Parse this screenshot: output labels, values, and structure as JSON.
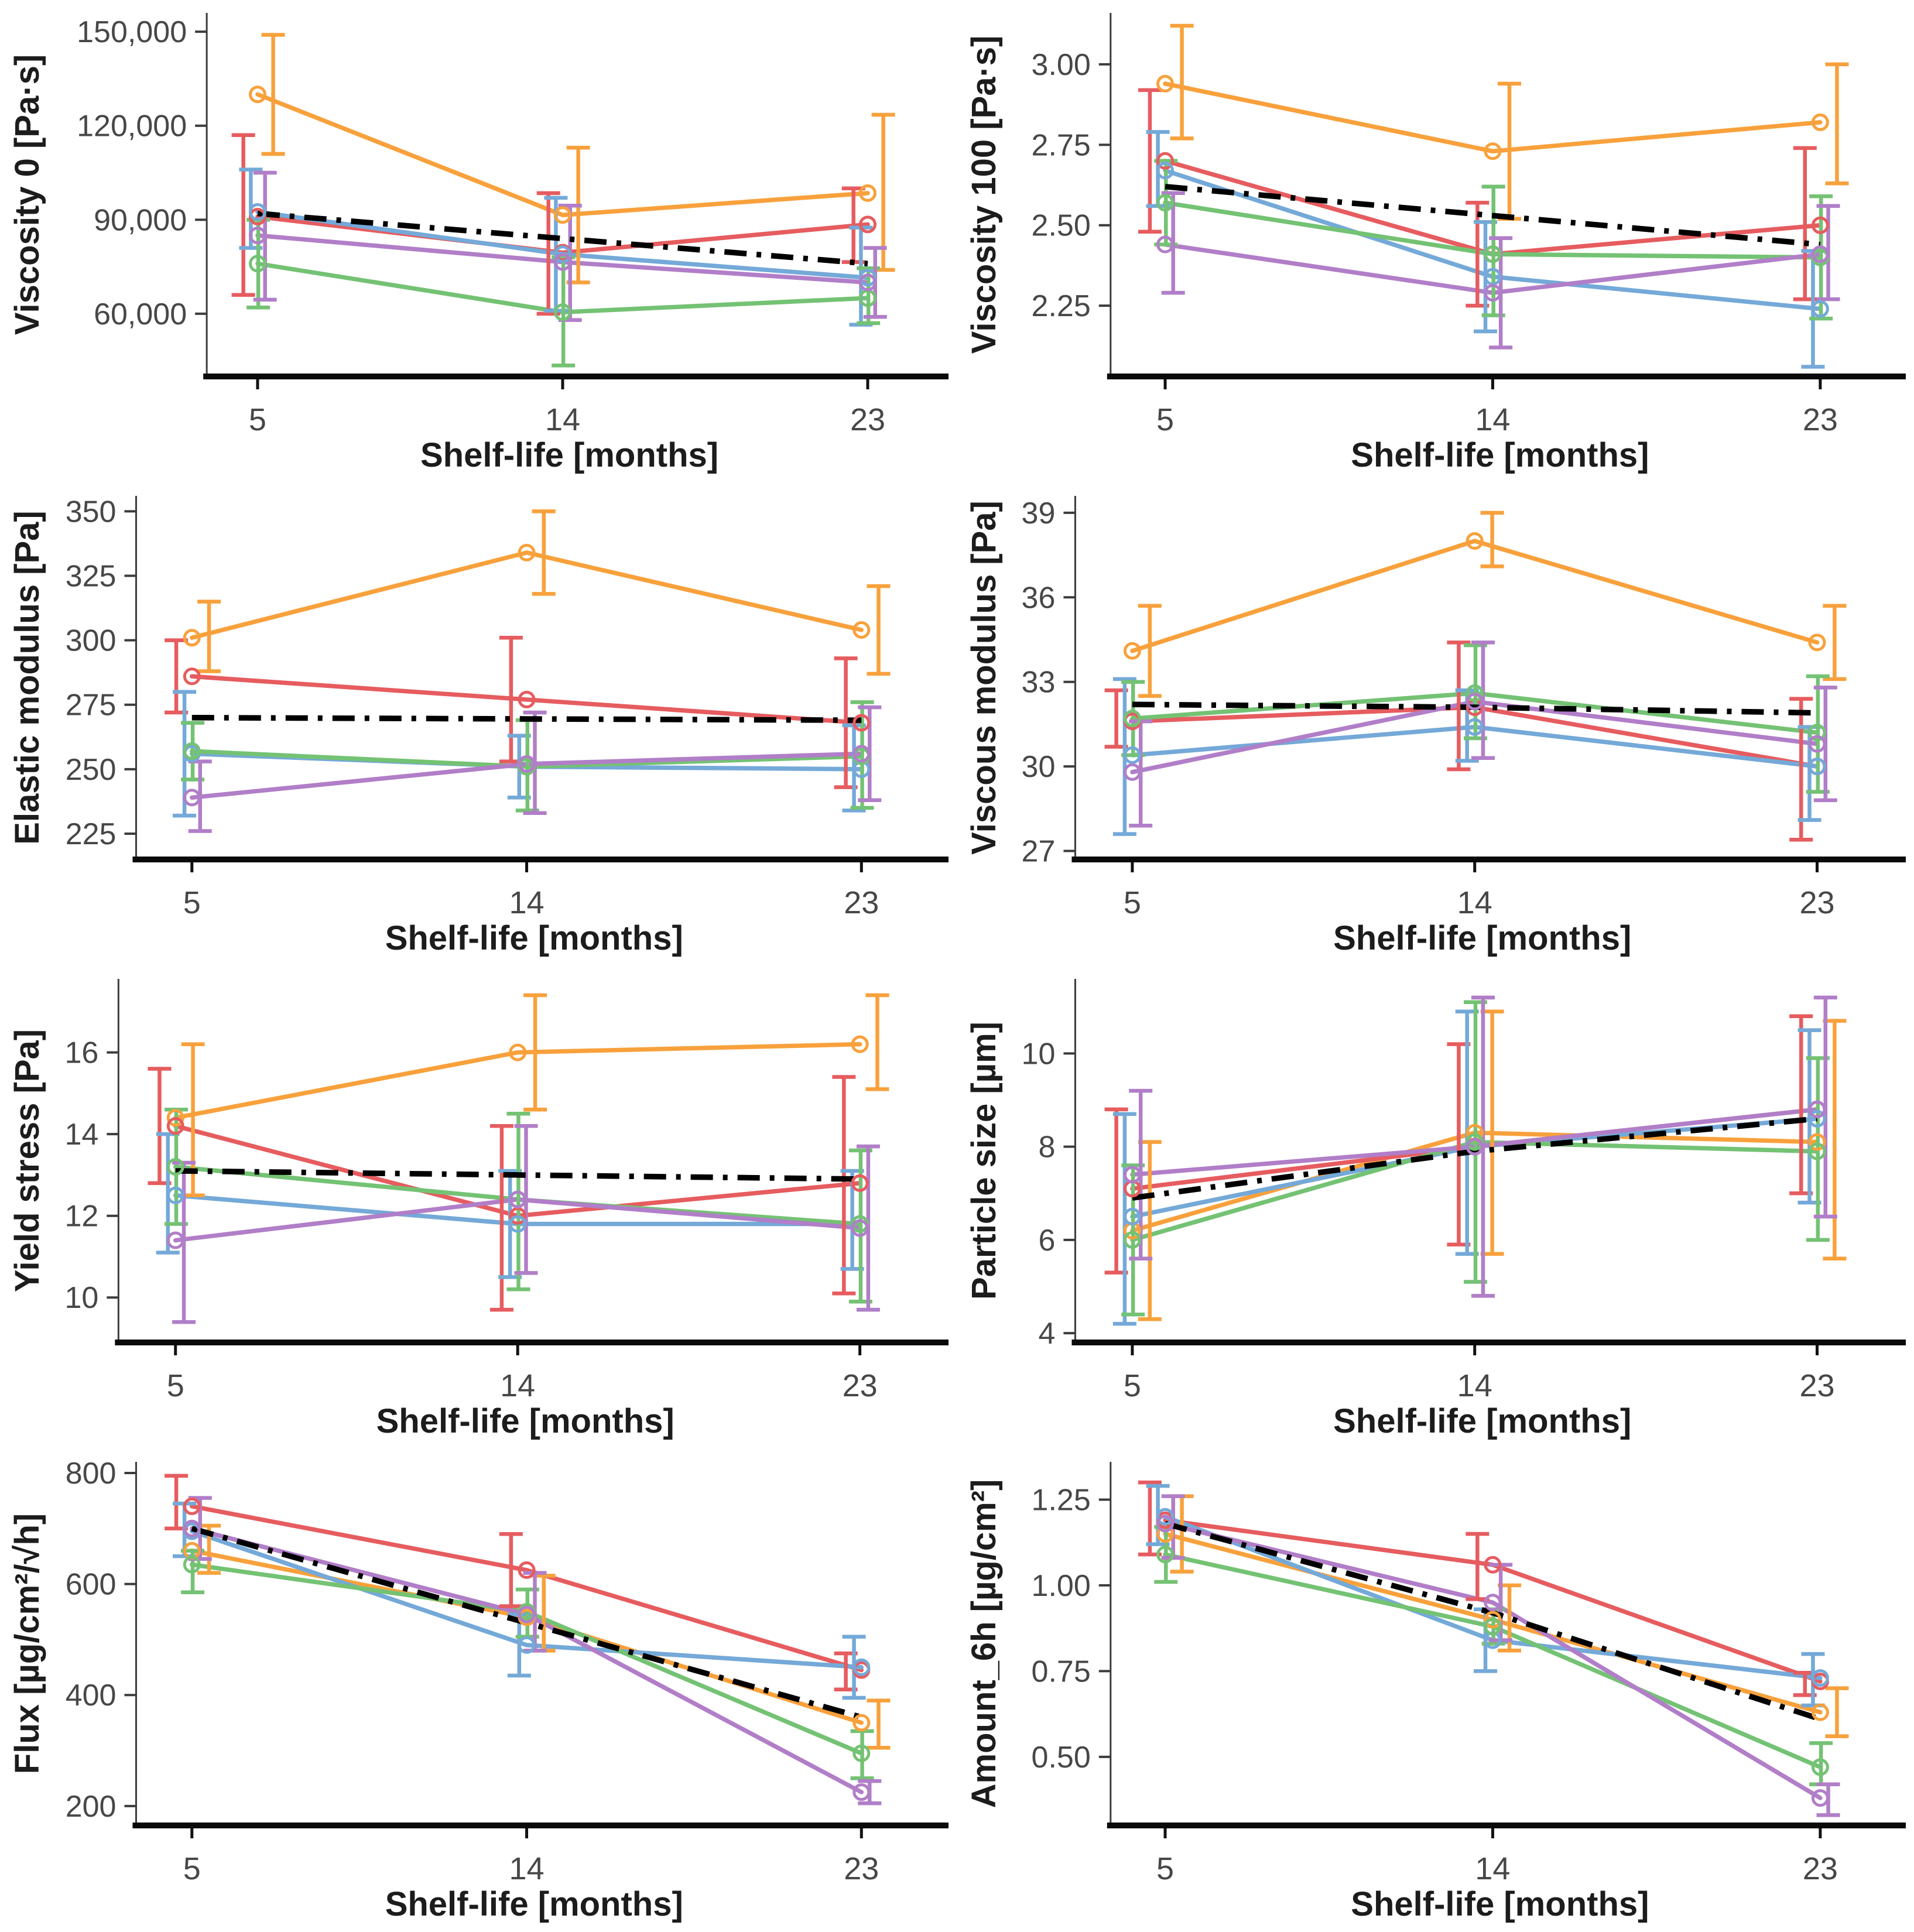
{
  "style": {
    "background": "#ffffff",
    "palette": {
      "orange": "#F8A13C",
      "red": "#E65C5F",
      "blue": "#74A9D8",
      "green": "#74C274",
      "purple": "#B17EC8"
    },
    "axis": {
      "baseline": "#0a0a0a",
      "spine": "#3c3c3c",
      "tick": "#3c3c3c",
      "tick_label": "#474747",
      "title": "#1c1c1c",
      "trend": "#000000"
    }
  },
  "figure": {
    "xlabel": "Shelf-life [months]",
    "x_ticks": [
      "5",
      "14",
      "23"
    ]
  },
  "chart_data": [
    {
      "id": "viscosity-0",
      "type": "line",
      "ylabel": "Viscosity 0 [Pa·s]",
      "xlabel": "Shelf-life [months]",
      "x": [
        5,
        14,
        23
      ],
      "xtick_labels": [
        "5",
        "14",
        "23"
      ],
      "ylim": [
        40000,
        156000
      ],
      "yticks": [
        60000,
        90000,
        120000,
        150000
      ],
      "ytick_labels": [
        "60,000",
        "90,000",
        "120,000",
        "150,000"
      ],
      "grid": false,
      "legend": "none",
      "trend": {
        "style": "dash-dot",
        "values": [
          92000,
          84000,
          76000
        ]
      },
      "series": [
        {
          "name": "orange",
          "values": [
            130000,
            91500,
            98500
          ],
          "err_low": [
            111000,
            70000,
            74000
          ],
          "err_high": [
            149000,
            113000,
            123500
          ]
        },
        {
          "name": "red",
          "values": [
            91000,
            79500,
            88500
          ],
          "err_low": [
            66000,
            60000,
            76500
          ],
          "err_high": [
            117000,
            98500,
            100000
          ]
        },
        {
          "name": "blue",
          "values": [
            92500,
            79000,
            71500
          ],
          "err_low": [
            81000,
            61000,
            56500
          ],
          "err_high": [
            106000,
            97000,
            87500
          ]
        },
        {
          "name": "green",
          "values": [
            76000,
            60500,
            65000
          ],
          "err_low": [
            62000,
            43500,
            57000
          ],
          "err_high": [
            90000,
            78000,
            74500
          ]
        },
        {
          "name": "purple",
          "values": [
            85000,
            76500,
            70000
          ],
          "err_low": [
            64500,
            58000,
            59000
          ],
          "err_high": [
            105000,
            94500,
            81000
          ]
        }
      ]
    },
    {
      "id": "viscosity-100",
      "type": "line",
      "ylabel": "Viscosity 100 [Pa·s]",
      "xlabel": "Shelf-life [months]",
      "x": [
        5,
        14,
        23
      ],
      "xtick_labels": [
        "5",
        "14",
        "23"
      ],
      "ylim": [
        2.03,
        3.16
      ],
      "yticks": [
        2.25,
        2.5,
        2.75,
        3.0
      ],
      "ytick_labels": [
        "2.25",
        "2.50",
        "2.75",
        "3.00"
      ],
      "grid": false,
      "legend": "none",
      "trend": {
        "style": "dash-dot",
        "values": [
          2.62,
          2.53,
          2.44
        ]
      },
      "series": [
        {
          "name": "orange",
          "values": [
            2.94,
            2.73,
            2.82
          ],
          "err_low": [
            2.77,
            2.52,
            2.63
          ],
          "err_high": [
            3.12,
            2.94,
            3.0
          ]
        },
        {
          "name": "red",
          "values": [
            2.7,
            2.41,
            2.5
          ],
          "err_low": [
            2.48,
            2.25,
            2.27
          ],
          "err_high": [
            2.92,
            2.57,
            2.74
          ]
        },
        {
          "name": "blue",
          "values": [
            2.67,
            2.34,
            2.24
          ],
          "err_low": [
            2.56,
            2.17,
            2.06
          ],
          "err_high": [
            2.79,
            2.51,
            2.42
          ]
        },
        {
          "name": "green",
          "values": [
            2.57,
            2.41,
            2.4
          ],
          "err_low": [
            2.44,
            2.22,
            2.21
          ],
          "err_high": [
            2.7,
            2.62,
            2.59
          ]
        },
        {
          "name": "purple",
          "values": [
            2.44,
            2.29,
            2.41
          ],
          "err_low": [
            2.29,
            2.12,
            2.27
          ],
          "err_high": [
            2.6,
            2.46,
            2.56
          ]
        }
      ]
    },
    {
      "id": "elastic-modulus",
      "type": "line",
      "ylabel": "Elastic modulus [Pa]",
      "xlabel": "Shelf-life [months]",
      "x": [
        5,
        14,
        23
      ],
      "xtick_labels": [
        "5",
        "14",
        "23"
      ],
      "ylim": [
        215,
        356
      ],
      "yticks": [
        225,
        250,
        275,
        300,
        325,
        350
      ],
      "ytick_labels": [
        "225",
        "250",
        "275",
        "300",
        "325",
        "350"
      ],
      "grid": false,
      "legend": "none",
      "trend": {
        "style": "dash-dot",
        "values": [
          270,
          269.5,
          269
        ]
      },
      "series": [
        {
          "name": "orange",
          "values": [
            301,
            334,
            304
          ],
          "err_low": [
            288,
            318,
            287
          ],
          "err_high": [
            315,
            350,
            321
          ]
        },
        {
          "name": "red",
          "values": [
            286,
            277,
            268
          ],
          "err_low": [
            272,
            253,
            243
          ],
          "err_high": [
            300,
            301,
            293
          ]
        },
        {
          "name": "blue",
          "values": [
            256,
            251,
            250
          ],
          "err_low": [
            232,
            239,
            234
          ],
          "err_high": [
            280,
            263,
            267
          ]
        },
        {
          "name": "green",
          "values": [
            257,
            251,
            255
          ],
          "err_low": [
            246,
            234,
            235
          ],
          "err_high": [
            268,
            269,
            276
          ]
        },
        {
          "name": "purple",
          "values": [
            239,
            252,
            256
          ],
          "err_low": [
            226,
            233,
            238
          ],
          "err_high": [
            253,
            272,
            274
          ]
        }
      ]
    },
    {
      "id": "viscous-modulus",
      "type": "line",
      "ylabel": "Viscous modulus [Pa]",
      "xlabel": "Shelf-life [months]",
      "x": [
        5,
        14,
        23
      ],
      "xtick_labels": [
        "5",
        "14",
        "23"
      ],
      "ylim": [
        26.7,
        39.6
      ],
      "yticks": [
        27,
        30,
        33,
        36,
        39
      ],
      "ytick_labels": [
        "27",
        "30",
        "33",
        "36",
        "39"
      ],
      "grid": false,
      "legend": "none",
      "trend": {
        "style": "dash-dot",
        "values": [
          32.2,
          32.1,
          31.9
        ]
      },
      "series": [
        {
          "name": "orange",
          "values": [
            34.1,
            38.0,
            34.4
          ],
          "err_low": [
            32.5,
            37.1,
            33.1
          ],
          "err_high": [
            35.7,
            39.0,
            35.7
          ]
        },
        {
          "name": "red",
          "values": [
            31.6,
            32.1,
            30.0
          ],
          "err_low": [
            30.7,
            29.9,
            27.4
          ],
          "err_high": [
            32.7,
            34.4,
            32.4
          ]
        },
        {
          "name": "blue",
          "values": [
            30.4,
            31.4,
            30.0
          ],
          "err_low": [
            27.6,
            30.2,
            28.1
          ],
          "err_high": [
            33.1,
            32.7,
            31.4
          ]
        },
        {
          "name": "green",
          "values": [
            31.7,
            32.6,
            31.2
          ],
          "err_low": [
            30.4,
            31.0,
            29.1
          ],
          "err_high": [
            33.0,
            34.3,
            33.2
          ]
        },
        {
          "name": "purple",
          "values": [
            29.8,
            32.3,
            30.8
          ],
          "err_low": [
            27.9,
            30.3,
            28.8
          ],
          "err_high": [
            31.6,
            34.4,
            32.8
          ]
        }
      ]
    },
    {
      "id": "yield-stress",
      "type": "line",
      "ylabel": "Yield stress [Pa]",
      "xlabel": "Shelf-life [months]",
      "x": [
        5,
        14,
        23
      ],
      "xtick_labels": [
        "5",
        "14",
        "23"
      ],
      "ylim": [
        8.9,
        17.8
      ],
      "yticks": [
        10,
        12,
        14,
        16
      ],
      "ytick_labels": [
        "10",
        "12",
        "14",
        "16"
      ],
      "grid": false,
      "legend": "none",
      "trend": {
        "style": "dash-dot",
        "values": [
          13.1,
          13.0,
          12.9
        ]
      },
      "series": [
        {
          "name": "orange",
          "values": [
            14.4,
            16.0,
            16.2
          ],
          "err_low": [
            12.5,
            14.6,
            15.1
          ],
          "err_high": [
            16.2,
            17.4,
            17.4
          ]
        },
        {
          "name": "red",
          "values": [
            14.2,
            12.0,
            12.8
          ],
          "err_low": [
            12.8,
            9.7,
            10.1
          ],
          "err_high": [
            15.6,
            14.2,
            15.4
          ]
        },
        {
          "name": "blue",
          "values": [
            12.5,
            11.8,
            11.8
          ],
          "err_low": [
            11.1,
            10.5,
            10.7
          ],
          "err_high": [
            14.0,
            13.1,
            13.1
          ]
        },
        {
          "name": "green",
          "values": [
            13.2,
            12.4,
            11.8
          ],
          "err_low": [
            11.8,
            10.2,
            9.9
          ],
          "err_high": [
            14.6,
            14.5,
            13.6
          ]
        },
        {
          "name": "purple",
          "values": [
            11.4,
            12.4,
            11.7
          ],
          "err_low": [
            9.4,
            10.6,
            9.7
          ],
          "err_high": [
            13.3,
            14.2,
            13.7
          ]
        }
      ]
    },
    {
      "id": "particle-size",
      "type": "line",
      "ylabel": "Particle size [µm]",
      "xlabel": "Shelf-life [months]",
      "x": [
        5,
        14,
        23
      ],
      "xtick_labels": [
        "5",
        "14",
        "23"
      ],
      "ylim": [
        3.8,
        11.6
      ],
      "yticks": [
        4,
        6,
        8,
        10
      ],
      "ytick_labels": [
        "4",
        "6",
        "8",
        "10"
      ],
      "grid": false,
      "legend": "none",
      "trend": {
        "style": "dash-dot",
        "values": [
          6.9,
          7.9,
          8.6
        ]
      },
      "series": [
        {
          "name": "orange",
          "values": [
            6.2,
            8.3,
            8.1
          ],
          "err_low": [
            4.3,
            5.7,
            5.6
          ],
          "err_high": [
            8.1,
            10.9,
            10.7
          ]
        },
        {
          "name": "red",
          "values": [
            7.1,
            8.0,
            8.8
          ],
          "err_low": [
            5.3,
            5.9,
            7.0
          ],
          "err_high": [
            8.8,
            10.2,
            10.8
          ]
        },
        {
          "name": "blue",
          "values": [
            6.5,
            8.0,
            8.6
          ],
          "err_low": [
            4.2,
            5.7,
            6.8
          ],
          "err_high": [
            8.7,
            10.9,
            10.5
          ]
        },
        {
          "name": "green",
          "values": [
            6.0,
            8.1,
            7.9
          ],
          "err_low": [
            4.4,
            5.1,
            6.0
          ],
          "err_high": [
            7.6,
            11.1,
            9.9
          ]
        },
        {
          "name": "purple",
          "values": [
            7.4,
            8.0,
            8.8
          ],
          "err_low": [
            5.6,
            4.8,
            6.5
          ],
          "err_high": [
            9.2,
            11.2,
            11.2
          ]
        }
      ]
    },
    {
      "id": "flux",
      "type": "line",
      "ylabel": "Flux [µg/cm²/√h]",
      "xlabel": "Shelf-life [months]",
      "x": [
        5,
        14,
        23
      ],
      "xtick_labels": [
        "5",
        "14",
        "23"
      ],
      "ylim": [
        165,
        820
      ],
      "yticks": [
        200,
        400,
        600,
        800
      ],
      "ytick_labels": [
        "200",
        "400",
        "600",
        "800"
      ],
      "grid": false,
      "legend": "none",
      "trend": {
        "style": "dash-dot",
        "values": [
          700,
          530,
          360
        ]
      },
      "series": [
        {
          "name": "orange",
          "values": [
            660,
            540,
            350
          ],
          "err_low": [
            620,
            480,
            305
          ],
          "err_high": [
            705,
            615,
            390
          ]
        },
        {
          "name": "red",
          "values": [
            740,
            625,
            445
          ],
          "err_low": [
            700,
            560,
            410
          ],
          "err_high": [
            795,
            690,
            475
          ]
        },
        {
          "name": "blue",
          "values": [
            695,
            490,
            450
          ],
          "err_low": [
            650,
            435,
            395
          ],
          "err_high": [
            745,
            545,
            505
          ]
        },
        {
          "name": "green",
          "values": [
            635,
            550,
            295
          ],
          "err_low": [
            585,
            505,
            250
          ],
          "err_high": [
            660,
            590,
            335
          ]
        },
        {
          "name": "purple",
          "values": [
            700,
            545,
            225
          ],
          "err_low": [
            645,
            480,
            205
          ],
          "err_high": [
            755,
            620,
            245
          ]
        }
      ]
    },
    {
      "id": "amount-6h",
      "type": "line",
      "ylabel": "Amount_6h [µg/cm²]",
      "xlabel": "Shelf-life [months]",
      "x": [
        5,
        14,
        23
      ],
      "xtick_labels": [
        "5",
        "14",
        "23"
      ],
      "ylim": [
        0.3,
        1.36
      ],
      "yticks": [
        0.5,
        0.75,
        1.0,
        1.25
      ],
      "ytick_labels": [
        "0.50",
        "0.75",
        "1.00",
        "1.25"
      ],
      "grid": false,
      "legend": "none",
      "trend": {
        "style": "dash-dot",
        "values": [
          1.18,
          0.92,
          0.61
        ]
      },
      "series": [
        {
          "name": "orange",
          "values": [
            1.15,
            0.9,
            0.63
          ],
          "err_low": [
            1.04,
            0.81,
            0.56
          ],
          "err_high": [
            1.26,
            1.0,
            0.7
          ]
        },
        {
          "name": "red",
          "values": [
            1.19,
            1.06,
            0.72
          ],
          "err_low": [
            1.09,
            0.96,
            0.68
          ],
          "err_high": [
            1.3,
            1.15,
            0.745
          ]
        },
        {
          "name": "blue",
          "values": [
            1.2,
            0.84,
            0.73
          ],
          "err_low": [
            1.12,
            0.75,
            0.65
          ],
          "err_high": [
            1.29,
            0.93,
            0.8
          ]
        },
        {
          "name": "green",
          "values": [
            1.09,
            0.88,
            0.47
          ],
          "err_low": [
            1.01,
            0.83,
            0.42
          ],
          "err_high": [
            1.17,
            0.93,
            0.54
          ]
        },
        {
          "name": "purple",
          "values": [
            1.18,
            0.95,
            0.38
          ],
          "err_low": [
            1.08,
            0.84,
            0.33
          ],
          "err_high": [
            1.26,
            1.06,
            0.42
          ]
        }
      ]
    }
  ]
}
